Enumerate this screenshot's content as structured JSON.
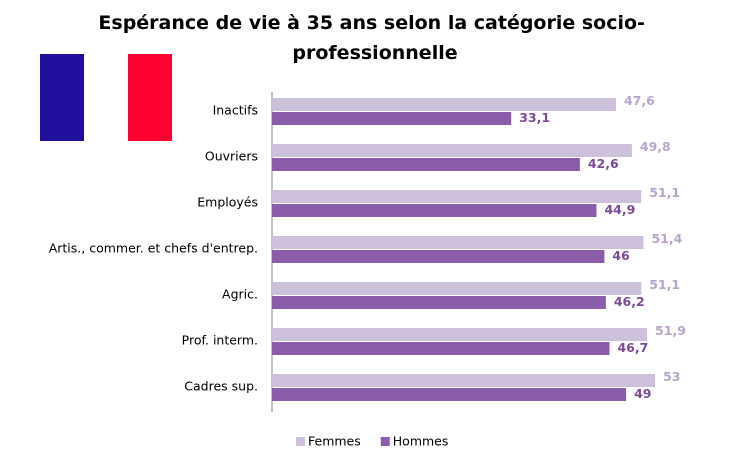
{
  "chart_data": {
    "type": "bar",
    "orientation": "horizontal",
    "title": "Espérance de vie à 35 ans selon la catégorie socio-professionnelle",
    "categories": [
      "Inactifs",
      "Ouvriers",
      "Employés",
      "Artis., commer. et chefs d'entrep.",
      "Agric.",
      "Prof. interm.",
      "Cadres sup."
    ],
    "series": [
      {
        "name": "Femmes",
        "color": "#ccc0da",
        "label_color": "#b9a3cf",
        "values": [
          47.6,
          49.8,
          51.1,
          51.4,
          51.1,
          51.9,
          53
        ],
        "value_labels": [
          "47,6",
          "49,8",
          "51,1",
          "51,4",
          "51,1",
          "51,9",
          "53"
        ]
      },
      {
        "name": "Hommes",
        "color": "#8b5ca9",
        "label_color": "#7b4a9b",
        "values": [
          33.1,
          42.6,
          44.9,
          46,
          46.2,
          46.7,
          49
        ],
        "value_labels": [
          "33,1",
          "42,6",
          "44,9",
          "46",
          "46,2",
          "46,7",
          "49"
        ]
      }
    ]
  }
}
